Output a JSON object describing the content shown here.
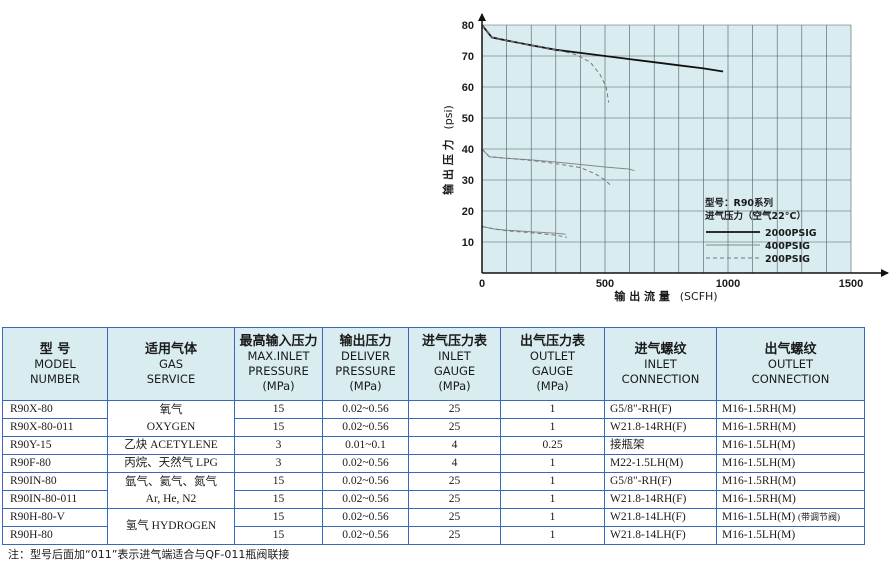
{
  "chart_data": {
    "type": "line",
    "xlabel_cn": "输 出 流 量",
    "xlabel_unit": "(SCFH)",
    "ylabel_cn": "输 出 压 力",
    "ylabel_unit": "(psi)",
    "xlim": [
      0,
      1500
    ],
    "ylim": [
      0,
      80
    ],
    "xticks": [
      0,
      500,
      1000,
      1500
    ],
    "yticks": [
      10,
      20,
      30,
      40,
      50,
      60,
      70,
      80
    ],
    "grid": true,
    "legend_title_1": "型号：R90系列",
    "legend_title_2": "进气压力（空气22°C）",
    "series": [
      {
        "name": "2000PSIG",
        "style": "solid-thick",
        "color": "#111111",
        "points": [
          [
            0,
            80
          ],
          [
            40,
            76
          ],
          [
            100,
            75
          ],
          [
            200,
            73.5
          ],
          [
            300,
            72
          ],
          [
            400,
            71
          ],
          [
            500,
            70
          ],
          [
            600,
            69
          ],
          [
            700,
            68
          ],
          [
            800,
            67
          ],
          [
            900,
            66
          ],
          [
            980,
            65
          ]
        ]
      },
      {
        "name": "2000PSIG",
        "style": "dashed",
        "color": "#777777",
        "points": [
          [
            0,
            80
          ],
          [
            40,
            76
          ],
          [
            100,
            75
          ],
          [
            200,
            73.5
          ],
          [
            300,
            72
          ],
          [
            380,
            70.5
          ],
          [
            440,
            68
          ],
          [
            480,
            64
          ],
          [
            505,
            60
          ],
          [
            515,
            55
          ]
        ]
      },
      {
        "name": "400PSIG",
        "style": "solid-thin",
        "color": "#888888",
        "points": [
          [
            0,
            40
          ],
          [
            30,
            37.5
          ],
          [
            100,
            37
          ],
          [
            200,
            36.5
          ],
          [
            300,
            35.8
          ],
          [
            400,
            35
          ],
          [
            500,
            34.2
          ],
          [
            600,
            33.5
          ],
          [
            620,
            33
          ]
        ]
      },
      {
        "name": "400PSIG",
        "style": "dashed",
        "color": "#777777",
        "points": [
          [
            0,
            40
          ],
          [
            30,
            37.5
          ],
          [
            100,
            37
          ],
          [
            200,
            36.3
          ],
          [
            300,
            35.3
          ],
          [
            400,
            34
          ],
          [
            460,
            32
          ],
          [
            500,
            30
          ],
          [
            520,
            28.5
          ]
        ]
      },
      {
        "name": "200PSIG",
        "style": "solid-thin",
        "color": "#888888",
        "points": [
          [
            0,
            15
          ],
          [
            50,
            14.2
          ],
          [
            100,
            13.8
          ],
          [
            200,
            13.3
          ],
          [
            300,
            12.8
          ],
          [
            340,
            12.5
          ]
        ]
      },
      {
        "name": "200PSIG",
        "style": "dashed",
        "color": "#777777",
        "points": [
          [
            0,
            15
          ],
          [
            50,
            14.2
          ],
          [
            100,
            13.6
          ],
          [
            200,
            13
          ],
          [
            300,
            12.2
          ],
          [
            345,
            11.5
          ]
        ]
      }
    ],
    "legend": [
      {
        "label": "2000PSIG",
        "style": "solid-thick"
      },
      {
        "label": "400PSIG",
        "style": "solid-thin"
      },
      {
        "label": "200PSIG",
        "style": "dashed"
      }
    ],
    "colors": {
      "plot_bg": "#d9edf1",
      "grid": "#4f5a5e"
    }
  },
  "table": {
    "headers": [
      {
        "cn": "型  号",
        "en1": "MODEL",
        "en2": "NUMBER",
        "en3": ""
      },
      {
        "cn": "适用气体",
        "en1": "GAS",
        "en2": "SERVICE",
        "en3": ""
      },
      {
        "cn": "最高输入压力",
        "en1": "MAX.INLET",
        "en2": "PRESSURE",
        "en3": "(MPa)"
      },
      {
        "cn": "输出压力",
        "en1": "DELIVER",
        "en2": "PRESSURE",
        "en3": "(MPa)"
      },
      {
        "cn": "进气压力表",
        "en1": "INLET",
        "en2": "GAUGE",
        "en3": "(MPa)"
      },
      {
        "cn": "出气压力表",
        "en1": "OUTLET",
        "en2": "GAUGE",
        "en3": "(MPa)"
      },
      {
        "cn": "进气螺纹",
        "en1": "INLET",
        "en2": "CONNECTION",
        "en3": ""
      },
      {
        "cn": "出气螺纹",
        "en1": "OUTLET",
        "en2": "CONNECTION",
        "en3": ""
      }
    ],
    "gas_groups": [
      {
        "line1": "氧气",
        "line2": "OXYGEN"
      },
      {
        "line1": "乙炔 ACETYLENE",
        "line2": ""
      },
      {
        "line1": "丙烷、天然气 LPG",
        "line2": ""
      },
      {
        "line1": "氩气、氦气、氮气",
        "line2": "Ar, He, N2"
      },
      {
        "line1": "氢气 HYDROGEN",
        "line2": ""
      }
    ],
    "rows": [
      {
        "model": "R90X-80",
        "max_inlet": "15",
        "deliver": "0.02~0.56",
        "inlet_gauge": "25",
        "outlet_gauge": "1",
        "inlet_conn": "G5/8\"-RH(F)",
        "outlet_conn": "M16-1.5RH(M)",
        "note": ""
      },
      {
        "model": "R90X-80-011",
        "max_inlet": "15",
        "deliver": "0.02~0.56",
        "inlet_gauge": "25",
        "outlet_gauge": "1",
        "inlet_conn": "W21.8-14RH(F)",
        "outlet_conn": "M16-1.5RH(M)",
        "note": ""
      },
      {
        "model": "R90Y-15",
        "max_inlet": "3",
        "deliver": "0.01~0.1",
        "inlet_gauge": "4",
        "outlet_gauge": "0.25",
        "inlet_conn": "接瓶架",
        "outlet_conn": "M16-1.5LH(M)",
        "note": ""
      },
      {
        "model": "R90F-80",
        "max_inlet": "3",
        "deliver": "0.02~0.56",
        "inlet_gauge": "4",
        "outlet_gauge": "1",
        "inlet_conn": "M22-1.5LH(M)",
        "outlet_conn": "M16-1.5LH(M)",
        "note": ""
      },
      {
        "model": "R90IN-80",
        "max_inlet": "15",
        "deliver": "0.02~0.56",
        "inlet_gauge": "25",
        "outlet_gauge": "1",
        "inlet_conn": "G5/8\"-RH(F)",
        "outlet_conn": "M16-1.5RH(M)",
        "note": ""
      },
      {
        "model": "R90IN-80-011",
        "max_inlet": "15",
        "deliver": "0.02~0.56",
        "inlet_gauge": "25",
        "outlet_gauge": "1",
        "inlet_conn": "W21.8-14RH(F)",
        "outlet_conn": "M16-1.5RH(M)",
        "note": ""
      },
      {
        "model": "R90H-80-V",
        "max_inlet": "15",
        "deliver": "0.02~0.56",
        "inlet_gauge": "25",
        "outlet_gauge": "1",
        "inlet_conn": "W21.8-14LH(F)",
        "outlet_conn": "M16-1.5LH(M)",
        "note": "(带调节阀)"
      },
      {
        "model": "R90H-80",
        "max_inlet": "15",
        "deliver": "0.02~0.56",
        "inlet_gauge": "25",
        "outlet_gauge": "1",
        "inlet_conn": "W21.8-14LH(F)",
        "outlet_conn": "M16-1.5LH(M)",
        "note": ""
      }
    ],
    "colors": {
      "header_bg": "#d9edf1",
      "border": "#3a68b8"
    }
  },
  "footnote": "注：型号后面加“011”表示进气端适合与QF-011瓶阀联接"
}
